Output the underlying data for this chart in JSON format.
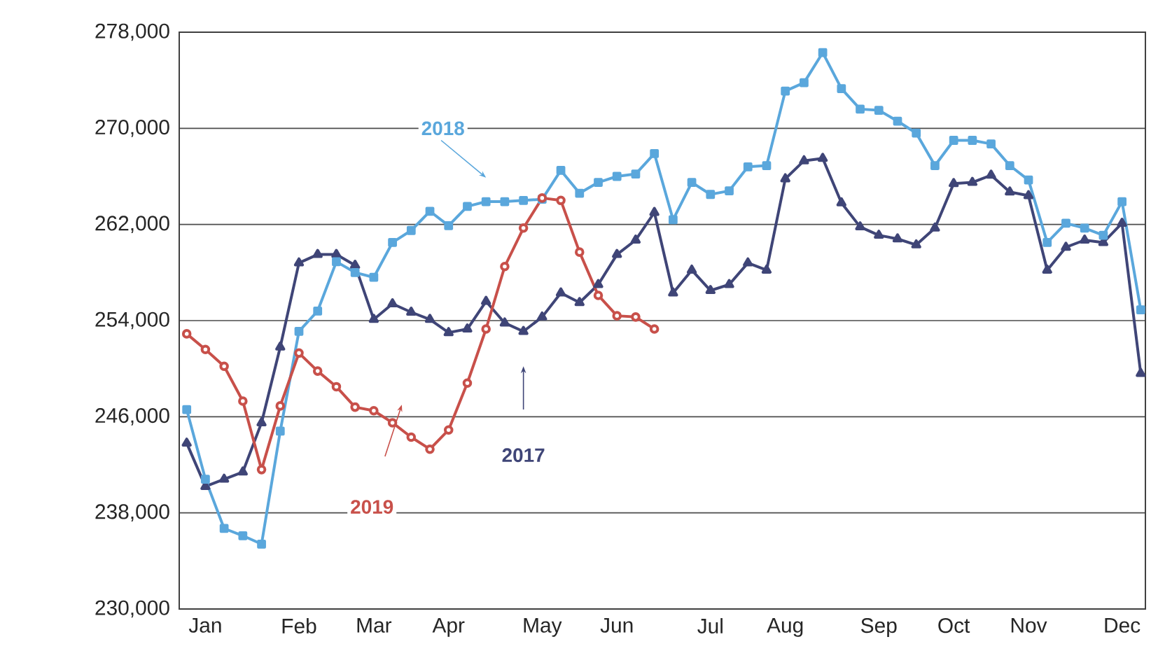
{
  "chart_data": {
    "type": "line",
    "categories": [
      null,
      "Jan",
      null,
      null,
      null,
      null,
      "Feb",
      null,
      null,
      null,
      "Mar",
      null,
      null,
      null,
      "Apr",
      null,
      null,
      null,
      null,
      "May",
      null,
      null,
      null,
      "Jun",
      null,
      null,
      null,
      null,
      "Jul",
      null,
      null,
      null,
      "Aug",
      null,
      null,
      null,
      null,
      "Sep",
      null,
      null,
      null,
      "Oct",
      null,
      null,
      null,
      "Nov",
      null,
      null,
      null,
      null,
      "Dec",
      null
    ],
    "ylim": [
      230000,
      278000
    ],
    "yticks": [
      {
        "value": 230000,
        "label": "230,000"
      },
      {
        "value": 238000,
        "label": "238,000"
      },
      {
        "value": 246000,
        "label": "246,000"
      },
      {
        "value": 254000,
        "label": "254,000"
      },
      {
        "value": 262000,
        "label": "262,000"
      },
      {
        "value": 270000,
        "label": "270,000"
      },
      {
        "value": 278000,
        "label": "278,000"
      }
    ],
    "grid": "y",
    "series": [
      {
        "name": "2017",
        "color": "#3f4577",
        "marker": "triangle",
        "values": [
          243800,
          240200,
          240800,
          241400,
          245500,
          251800,
          258800,
          259500,
          259500,
          258600,
          254100,
          255400,
          254700,
          254100,
          253000,
          253300,
          255600,
          253800,
          253100,
          254300,
          256300,
          255500,
          257000,
          259500,
          260700,
          263000,
          256300,
          258200,
          256500,
          257000,
          258800,
          258200,
          265800,
          267300,
          267500,
          263800,
          261800,
          261100,
          260800,
          260300,
          261700,
          265400,
          265500,
          266100,
          264700,
          264400,
          258200,
          260100,
          260700,
          260500,
          262100,
          249600
        ]
      },
      {
        "name": "2018",
        "color": "#5aa7dc",
        "marker": "square",
        "values": [
          246600,
          240800,
          236700,
          236100,
          235400,
          244800,
          253100,
          254800,
          258900,
          258000,
          257600,
          260500,
          261500,
          263100,
          261900,
          263500,
          263900,
          263900,
          264000,
          264100,
          266500,
          264600,
          265500,
          266000,
          266200,
          267900,
          262400,
          265500,
          264500,
          264800,
          266800,
          266900,
          273100,
          273800,
          276300,
          273300,
          271600,
          271500,
          270600,
          269600,
          266900,
          269000,
          269000,
          268700,
          266900,
          265700,
          260500,
          262100,
          261700,
          261100,
          263900,
          254900
        ]
      },
      {
        "name": "2019",
        "color": "#c8504a",
        "marker": "circle",
        "values": [
          252900,
          251600,
          250200,
          247300,
          241600,
          246900,
          251300,
          249800,
          248500,
          246800,
          246500,
          245500,
          244300,
          243300,
          244900,
          248800,
          253300,
          258500,
          261700,
          264200,
          264000,
          259700,
          256100,
          254400,
          254300,
          253300,
          null,
          null,
          null,
          null,
          null,
          null,
          null,
          null,
          null,
          null,
          null,
          null,
          null,
          null,
          null,
          null,
          null,
          null,
          null,
          null,
          null,
          null,
          null,
          null,
          null,
          null
        ]
      }
    ]
  }
}
